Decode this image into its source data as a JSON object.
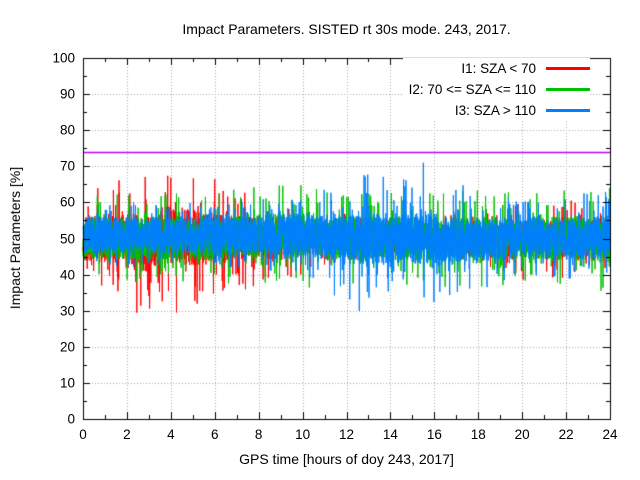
{
  "chart_data": {
    "type": "line",
    "title": "Impact Parameters. SISTED rt 30s mode. 243, 2017.",
    "xlabel": "GPS time [hours of doy 243, 2017]",
    "ylabel": "Impact Parameters [%]",
    "xlim": [
      0,
      24
    ],
    "ylim": [
      0,
      100
    ],
    "x_ticks": [
      0,
      2,
      4,
      6,
      8,
      10,
      12,
      14,
      16,
      18,
      20,
      22,
      24
    ],
    "y_ticks": [
      0,
      10,
      20,
      30,
      40,
      50,
      60,
      70,
      80,
      90,
      100
    ],
    "x_minor_tick_step": 1,
    "y_minor_tick_step": 5,
    "grid": true,
    "grid_style": "dotted",
    "legend_position": "top-right-inside",
    "sample_interval_hours": 0.0083333,
    "noise_seed": 2432017,
    "core_probability": 0.9,
    "spike_shape_exponent": 1.4,
    "threshold_line": {
      "value": 74,
      "color": "#c000ff"
    },
    "series": [
      {
        "name": "I1: SZA < 70",
        "color": "#ff0000",
        "envelope_keyframes_t_center_corehalf_spikehalf": [
          [
            0,
            50,
            6,
            13
          ],
          [
            1.5,
            50,
            7,
            16
          ],
          [
            2.4,
            49,
            8,
            20
          ],
          [
            2.9,
            48,
            8,
            24
          ],
          [
            3.6,
            51,
            8,
            20
          ],
          [
            4.3,
            51,
            8,
            22
          ],
          [
            5,
            50,
            8,
            19
          ],
          [
            5.8,
            50,
            7,
            17
          ],
          [
            7,
            50,
            6,
            15
          ],
          [
            8.5,
            50,
            6,
            13
          ],
          [
            9.5,
            50,
            5,
            11
          ],
          [
            11,
            50,
            4,
            8
          ],
          [
            13,
            50,
            4,
            6
          ],
          [
            16,
            50,
            4,
            6
          ],
          [
            18,
            50,
            4,
            8
          ],
          [
            19,
            50,
            5,
            11
          ],
          [
            20.5,
            50,
            5,
            13
          ],
          [
            22,
            50,
            5,
            11
          ],
          [
            23,
            50,
            5,
            9
          ],
          [
            24,
            50,
            5,
            9
          ]
        ]
      },
      {
        "name": "I2: 70 <= SZA <= 110",
        "color": "#00c000",
        "envelope_keyframes_t_center_corehalf_spikehalf": [
          [
            0,
            50,
            6,
            13
          ],
          [
            2,
            50,
            6,
            12
          ],
          [
            4,
            50,
            6,
            13
          ],
          [
            6,
            50,
            6,
            13
          ],
          [
            8,
            51,
            6,
            14
          ],
          [
            9.5,
            51,
            6,
            15
          ],
          [
            11,
            50,
            6,
            14
          ],
          [
            13,
            50,
            6,
            13
          ],
          [
            15,
            50,
            6,
            13
          ],
          [
            17,
            50,
            6,
            14
          ],
          [
            19,
            50,
            6,
            13
          ],
          [
            21,
            50,
            6,
            13
          ],
          [
            23,
            50,
            6,
            14
          ],
          [
            24,
            50,
            6,
            15
          ]
        ]
      },
      {
        "name": "I3: SZA > 110",
        "color": "#0080ff",
        "envelope_keyframes_t_center_corehalf_spikehalf": [
          [
            0,
            51,
            5,
            9
          ],
          [
            2,
            51,
            5,
            9
          ],
          [
            4,
            51,
            5,
            9
          ],
          [
            6,
            51,
            5,
            9
          ],
          [
            8,
            51,
            5,
            10
          ],
          [
            10,
            51,
            6,
            11
          ],
          [
            11.2,
            50,
            6,
            14
          ],
          [
            12.2,
            50,
            7,
            21
          ],
          [
            13.2,
            50,
            7,
            19
          ],
          [
            14.2,
            50,
            7,
            17
          ],
          [
            15.3,
            50,
            7,
            22
          ],
          [
            16.3,
            50,
            7,
            19
          ],
          [
            17.2,
            49,
            6,
            16
          ],
          [
            18,
            49,
            6,
            14
          ],
          [
            19,
            50,
            6,
            12
          ],
          [
            20,
            50,
            5,
            11
          ],
          [
            21.5,
            50,
            5,
            11
          ],
          [
            23,
            50,
            6,
            13
          ],
          [
            24,
            51,
            6,
            12
          ]
        ]
      }
    ]
  },
  "colors": {
    "background": "#ffffff",
    "axis": "#000000",
    "grid": "#aaaaaa",
    "threshold": "#c000ff"
  }
}
